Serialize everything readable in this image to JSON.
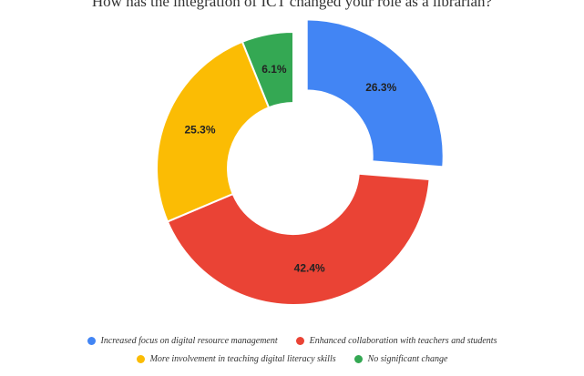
{
  "chart_data": {
    "type": "pie",
    "title": "How has the integration of ICT changed your role as a librarian?",
    "categories": [
      "Increased focus on digital resource management",
      "Enhanced collaboration with teachers and students",
      "More involvement in teaching digital literacy skills",
      "No significant change"
    ],
    "values": [
      26.3,
      42.4,
      25.3,
      6.1
    ],
    "value_labels": [
      "26.3%",
      "42.4%",
      "25.3%",
      "6.1%"
    ],
    "colors": [
      "#4285f4",
      "#ea4335",
      "#fbbc04",
      "#34a853"
    ],
    "exploded": [
      true,
      false,
      false,
      false
    ],
    "legend_position": "bottom",
    "donut": true
  }
}
